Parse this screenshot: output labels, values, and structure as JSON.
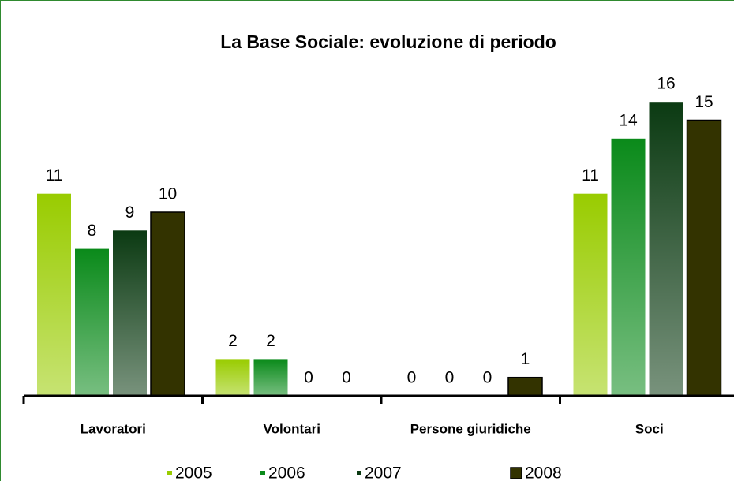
{
  "chart_data": {
    "type": "bar",
    "title": "La Base Sociale: evoluzione di periodo",
    "categories": [
      "Lavoratori",
      "Volontari",
      "Persone giuridiche",
      "Soci"
    ],
    "series": [
      {
        "name": "2005",
        "color": "#99cc00",
        "gradient": true,
        "values": [
          11,
          2,
          0,
          11
        ]
      },
      {
        "name": "2006",
        "color": "#0a8a1a",
        "gradient": true,
        "values": [
          8,
          2,
          0,
          14
        ]
      },
      {
        "name": "2007",
        "color": "#0b3a12",
        "gradient": true,
        "values": [
          9,
          0,
          0,
          16
        ]
      },
      {
        "name": "2008",
        "color": "#333300",
        "gradient": false,
        "values": [
          10,
          0,
          1,
          15
        ]
      }
    ]
  }
}
